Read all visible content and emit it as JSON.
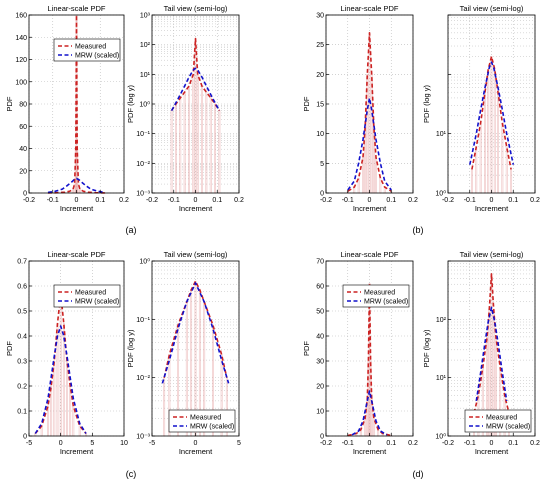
{
  "colors": {
    "measured": "#cc2222",
    "mrw": "#1111cc",
    "grid": "#b8b8b8",
    "axis": "#000000",
    "faint": "#e7a3a3"
  },
  "panel_labels": [
    "(a)",
    "(b)",
    "(c)",
    "(d)"
  ],
  "chart_data": [
    {
      "type": "line",
      "panel": "(a)",
      "title": "Linear-scale PDF",
      "xlabel": "Increment",
      "ylabel": "PDF",
      "xlim": [
        -0.2,
        0.2
      ],
      "ylim": [
        0,
        160
      ],
      "xticks": [
        "-0.2",
        "-0.1",
        "0",
        "0.1",
        "0.2"
      ],
      "yticks": [
        "0",
        "20",
        "40",
        "60",
        "80",
        "100",
        "120",
        "140",
        "160"
      ],
      "legend": "top-right",
      "grid": true,
      "series": [
        {
          "name": "Measured",
          "x": [
            -0.12,
            -0.08,
            -0.05,
            -0.03,
            -0.015,
            -0.008,
            -0.003,
            0,
            0.003,
            0.008,
            0.015,
            0.03,
            0.05,
            0.08,
            0.12
          ],
          "y": [
            0.1,
            0.3,
            0.7,
            1.5,
            3,
            8,
            40,
            160,
            40,
            8,
            3,
            1.5,
            0.7,
            0.3,
            0.1
          ]
        },
        {
          "name": "MRW (scaled)",
          "x": [
            -0.12,
            -0.09,
            -0.06,
            -0.04,
            -0.02,
            -0.01,
            0,
            0.01,
            0.02,
            0.04,
            0.06,
            0.09,
            0.12
          ],
          "y": [
            0.5,
            1.5,
            3.5,
            6.5,
            10,
            12,
            13,
            12,
            10,
            6.5,
            3.5,
            1.5,
            0.5
          ]
        }
      ]
    },
    {
      "type": "line",
      "panel": "(a)",
      "title": "Tail view (semi-log)",
      "xlabel": "Increment",
      "ylabel": "PDF (log y)",
      "xlim": [
        -0.2,
        0.2
      ],
      "ylim": [
        0.001,
        1000
      ],
      "yscale": "log",
      "xticks": [
        "-0.2",
        "-0.1",
        "0",
        "0.1",
        "0.2"
      ],
      "yticks": [
        "10⁻³",
        "10⁻²",
        "10⁻¹",
        "10⁰",
        "10¹",
        "10²",
        "10³"
      ],
      "grid": true,
      "series": [
        {
          "name": "Measured",
          "x": [
            -0.11,
            -0.09,
            -0.07,
            -0.05,
            -0.03,
            -0.01,
            0,
            0.01,
            0.03,
            0.05,
            0.07,
            0.09,
            0.11
          ],
          "y": [
            0.6,
            1,
            1.6,
            2.5,
            4,
            10,
            160,
            10,
            4,
            2.5,
            1.6,
            1,
            0.6
          ]
        },
        {
          "name": "MRW (scaled)",
          "x": [
            -0.11,
            -0.08,
            -0.05,
            -0.03,
            -0.01,
            0,
            0.01,
            0.03,
            0.05,
            0.08,
            0.11
          ],
          "y": [
            0.6,
            1.5,
            4,
            8,
            14,
            16,
            14,
            8,
            4,
            1.5,
            0.6
          ]
        }
      ]
    },
    {
      "type": "line",
      "panel": "(b)",
      "title": "Linear-scale PDF",
      "xlabel": "Increment",
      "ylabel": "PDF",
      "xlim": [
        -0.2,
        0.2
      ],
      "ylim": [
        0,
        30
      ],
      "xticks": [
        "-0.2",
        "-0.1",
        "0",
        "0.1",
        "0.2"
      ],
      "yticks": [
        "0",
        "5",
        "10",
        "15",
        "20",
        "25",
        "30"
      ],
      "grid": true,
      "series": [
        {
          "name": "Measured",
          "x": [
            -0.1,
            -0.07,
            -0.05,
            -0.03,
            -0.02,
            -0.01,
            0,
            0.01,
            0.02,
            0.03,
            0.05,
            0.07,
            0.1
          ],
          "y": [
            0.3,
            1,
            2.5,
            6,
            11,
            20,
            27,
            20,
            11,
            6,
            2.5,
            1,
            0.3
          ]
        },
        {
          "name": "MRW (scaled)",
          "x": [
            -0.1,
            -0.07,
            -0.05,
            -0.03,
            -0.01,
            0,
            0.01,
            0.03,
            0.05,
            0.07,
            0.1
          ],
          "y": [
            0.5,
            2,
            5,
            9,
            14,
            16,
            14,
            9,
            5,
            2,
            0.5
          ]
        }
      ]
    },
    {
      "type": "line",
      "panel": "(b)",
      "title": "Tail view (semi-log)",
      "xlabel": "Increment",
      "ylabel": "PDF (log y)",
      "xlim": [
        -0.2,
        0.2
      ],
      "ylim": [
        0.1,
        100
      ],
      "yscale": "log",
      "xticks": [
        "-0.2",
        "-0.1",
        "0",
        "0.1",
        "0.2"
      ],
      "yticks": [
        "10⁰",
        "10¹"
      ],
      "grid": true,
      "series": [
        {
          "name": "Measured",
          "x": [
            -0.09,
            -0.07,
            -0.05,
            -0.03,
            -0.015,
            0,
            0.015,
            0.03,
            0.05,
            0.07,
            0.09
          ],
          "y": [
            0.25,
            0.6,
            1.5,
            5,
            12,
            20,
            12,
            5,
            1.5,
            0.6,
            0.25
          ]
        },
        {
          "name": "MRW (scaled)",
          "x": [
            -0.1,
            -0.07,
            -0.05,
            -0.03,
            -0.01,
            0,
            0.01,
            0.03,
            0.05,
            0.07,
            0.1
          ],
          "y": [
            0.3,
            1,
            2.5,
            6,
            13,
            16,
            13,
            6,
            2.5,
            1,
            0.3
          ]
        }
      ]
    },
    {
      "type": "line",
      "panel": "(c)",
      "title": "Linear-scale PDF",
      "xlabel": "Increment",
      "ylabel": "PDF",
      "xlim": [
        -5,
        10
      ],
      "ylim": [
        0,
        0.7
      ],
      "xticks": [
        "-5",
        "0",
        "5",
        "10"
      ],
      "yticks": [
        "0",
        "0.1",
        "0.2",
        "0.3",
        "0.4",
        "0.5",
        "0.6",
        "0.7"
      ],
      "legend": "top-right",
      "grid": true,
      "series": [
        {
          "name": "Measured",
          "x": [
            -4,
            -3,
            -2,
            -1.5,
            -1,
            -0.5,
            0,
            0.5,
            1,
            1.5,
            2,
            3,
            4
          ],
          "y": [
            0.01,
            0.04,
            0.12,
            0.2,
            0.3,
            0.45,
            0.57,
            0.45,
            0.3,
            0.2,
            0.12,
            0.04,
            0.01
          ]
        },
        {
          "name": "MRW (scaled)",
          "x": [
            -4,
            -3,
            -2,
            -1,
            -0.5,
            0,
            0.5,
            1,
            2,
            3,
            4
          ],
          "y": [
            0.01,
            0.05,
            0.15,
            0.32,
            0.4,
            0.44,
            0.4,
            0.32,
            0.15,
            0.05,
            0.01
          ]
        }
      ]
    },
    {
      "type": "line",
      "panel": "(c)",
      "title": "Tail view (semi-log)",
      "xlabel": "Increment",
      "ylabel": "PDF (log y)",
      "xlim": [
        -5,
        5
      ],
      "ylim": [
        0.001,
        1
      ],
      "yscale": "log",
      "xticks": [
        "-5",
        "0",
        "5"
      ],
      "yticks": [
        "10⁻³",
        "10⁻²",
        "10⁻¹",
        "10⁰"
      ],
      "legend": "bottom-right",
      "grid": true,
      "series": [
        {
          "name": "Measured",
          "x": [
            -3.6,
            -3,
            -2,
            -1,
            -0.5,
            0,
            0.5,
            1,
            2,
            3,
            3.6
          ],
          "y": [
            0.01,
            0.025,
            0.08,
            0.2,
            0.32,
            0.45,
            0.32,
            0.2,
            0.08,
            0.025,
            0.01
          ]
        },
        {
          "name": "MRW (scaled)",
          "x": [
            -3.8,
            -3,
            -2,
            -1,
            0,
            1,
            2,
            3,
            3.8
          ],
          "y": [
            0.008,
            0.02,
            0.07,
            0.2,
            0.42,
            0.2,
            0.07,
            0.02,
            0.008
          ]
        }
      ]
    },
    {
      "type": "line",
      "panel": "(d)",
      "title": "Linear-scale PDF",
      "xlabel": "Increment",
      "ylabel": "PDF",
      "xlim": [
        -0.2,
        0.2
      ],
      "ylim": [
        0,
        70
      ],
      "xticks": [
        "-0.2",
        "-0.1",
        "0",
        "0.1",
        "0.2"
      ],
      "yticks": [
        "0",
        "10",
        "20",
        "30",
        "40",
        "50",
        "60",
        "70"
      ],
      "legend": "top-right",
      "grid": true,
      "series": [
        {
          "name": "Measured",
          "x": [
            -0.1,
            -0.06,
            -0.04,
            -0.02,
            -0.01,
            -0.005,
            0,
            0.005,
            0.01,
            0.02,
            0.04,
            0.06,
            0.1
          ],
          "y": [
            0.2,
            1,
            2.5,
            7,
            15,
            30,
            61,
            30,
            15,
            7,
            2.5,
            1,
            0.2
          ]
        },
        {
          "name": "MRW (scaled)",
          "x": [
            -0.08,
            -0.05,
            -0.03,
            -0.015,
            0,
            0.015,
            0.03,
            0.05,
            0.08
          ],
          "y": [
            0.5,
            2,
            6,
            12,
            18,
            12,
            6,
            2,
            0.5
          ]
        }
      ]
    },
    {
      "type": "line",
      "panel": "(d)",
      "title": "Tail view (semi-log)",
      "xlabel": "Increment",
      "ylabel": "PDF (log y)",
      "xlim": [
        -0.2,
        0.2
      ],
      "ylim": [
        0.1,
        100
      ],
      "yscale": "log",
      "xticks": [
        "-0.2",
        "-0.1",
        "0",
        "0.1",
        "0.2"
      ],
      "yticks": [
        "10⁰",
        "10¹",
        "10²"
      ],
      "legend": "bottom-right",
      "grid": true,
      "series": [
        {
          "name": "Measured",
          "x": [
            -0.08,
            -0.06,
            -0.04,
            -0.02,
            -0.01,
            0,
            0.01,
            0.02,
            0.04,
            0.06,
            0.08
          ],
          "y": [
            0.25,
            0.5,
            1.5,
            5,
            15,
            60,
            15,
            5,
            1.5,
            0.5,
            0.25
          ]
        },
        {
          "name": "MRW (scaled)",
          "x": [
            -0.07,
            -0.05,
            -0.03,
            -0.015,
            0,
            0.015,
            0.03,
            0.05,
            0.07
          ],
          "y": [
            0.4,
            1.2,
            4,
            9,
            16,
            9,
            4,
            1.2,
            0.4
          ]
        }
      ]
    }
  ]
}
